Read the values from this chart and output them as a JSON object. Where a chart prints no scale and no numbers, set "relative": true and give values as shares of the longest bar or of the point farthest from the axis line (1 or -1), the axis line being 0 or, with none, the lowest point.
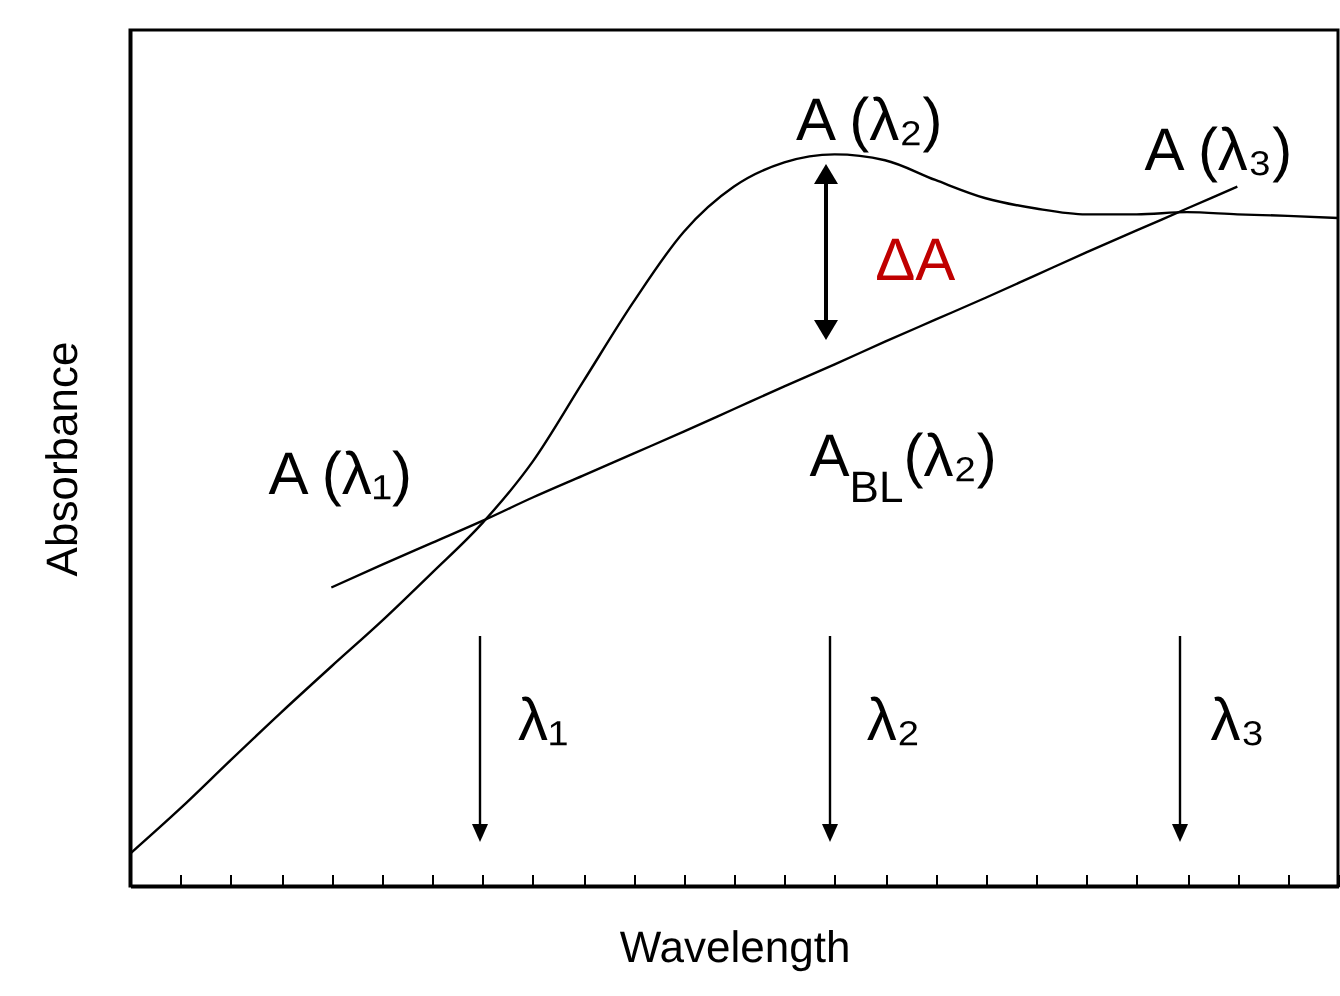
{
  "chart_data": {
    "type": "line",
    "relative": true,
    "xlabel": "Wavelength",
    "ylabel": "Absorbance",
    "grid": false,
    "marker": "none",
    "line_style": "solid",
    "categories": [
      null,
      null,
      null,
      null,
      null,
      null,
      null,
      null,
      null,
      null,
      null,
      null,
      null,
      null,
      null,
      null,
      null,
      null,
      null,
      null,
      null,
      null,
      null,
      null,
      null
    ],
    "series": [
      {
        "color": "#000000",
        "values": [
          0.044,
          0.106,
          0.172,
          0.237,
          0.3,
          0.362,
          0.428,
          0.496,
          0.58,
          0.689,
          0.798,
          0.894,
          0.956,
          0.989,
          1,
          0.992,
          0.965,
          0.94,
          0.926,
          0.918,
          0.918,
          0.921,
          0.918,
          0.916,
          0.913
        ]
      },
      {
        "color": "#000000",
        "values": [
          null,
          null,
          null,
          null,
          0.408,
          0.439,
          0.469,
          0.499,
          0.531,
          0.561,
          0.591,
          0.621,
          0.652,
          0.683,
          0.713,
          0.744,
          0.774,
          0.804,
          0.835,
          0.866,
          0.896,
          0.926,
          0.956,
          null,
          null
        ]
      }
    ],
    "annotations": [
      "A (λ₁)",
      "A (λ₂)",
      "A (λ₃)",
      "ΔA",
      "A$_{BL}$(λ₂)",
      "λ₁",
      "λ₂",
      "λ₃"
    ]
  }
}
